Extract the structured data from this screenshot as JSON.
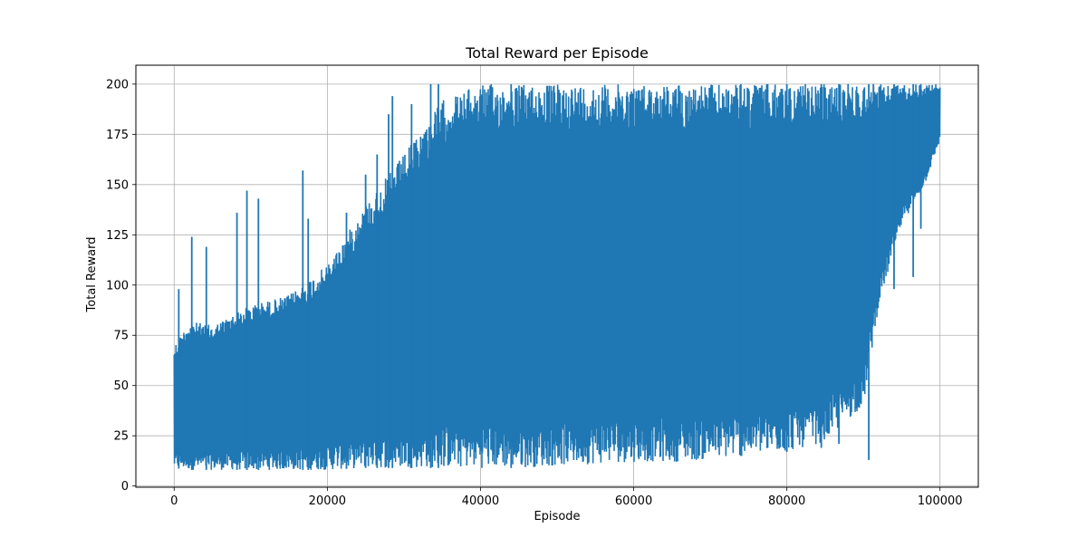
{
  "chart_data": {
    "type": "line",
    "title": "Total Reward per Episode",
    "xlabel": "Episode",
    "ylabel": "Total Reward",
    "xlim": [
      -5000,
      105000
    ],
    "ylim": [
      -0.6,
      209.4
    ],
    "xticks": [
      0,
      20000,
      40000,
      60000,
      80000,
      100000
    ],
    "yticks": [
      0,
      25,
      50,
      75,
      100,
      125,
      150,
      175,
      200
    ],
    "grid": true,
    "legend": "none",
    "series": [
      {
        "color": "#1f77b4",
        "envelope": {
          "x": [
            0,
            2000,
            5000,
            10000,
            15000,
            20000,
            25000,
            30000,
            35000,
            40000,
            45000,
            50000,
            55000,
            60000,
            65000,
            70000,
            75000,
            80000,
            85000,
            90000,
            92000,
            95000,
            98000,
            100000
          ],
          "upper": [
            70,
            82,
            80,
            90,
            95,
            110,
            140,
            165,
            192,
            200,
            200,
            200,
            200,
            200,
            200,
            200,
            200,
            200,
            200,
            200,
            200,
            200,
            200,
            200
          ],
          "lower": [
            9,
            8,
            8,
            8,
            8,
            8,
            9,
            9,
            9,
            9,
            9,
            10,
            11,
            12,
            12,
            13,
            15,
            17,
            22,
            40,
            90,
            130,
            150,
            172
          ]
        },
        "spikes": [
          {
            "x": 600,
            "y": 98
          },
          {
            "x": 2300,
            "y": 124
          },
          {
            "x": 4200,
            "y": 119
          },
          {
            "x": 8200,
            "y": 136
          },
          {
            "x": 9500,
            "y": 147
          },
          {
            "x": 11000,
            "y": 143
          },
          {
            "x": 16800,
            "y": 157
          },
          {
            "x": 17500,
            "y": 133
          },
          {
            "x": 22500,
            "y": 136
          },
          {
            "x": 25000,
            "y": 155
          },
          {
            "x": 26500,
            "y": 165
          },
          {
            "x": 28000,
            "y": 185
          },
          {
            "x": 28500,
            "y": 194
          },
          {
            "x": 31000,
            "y": 190
          },
          {
            "x": 33500,
            "y": 200
          },
          {
            "x": 34500,
            "y": 200
          },
          {
            "x": 44000,
            "y": 200
          }
        ],
        "dips": [
          {
            "x": 74000,
            "y": 15
          },
          {
            "x": 77500,
            "y": 19
          },
          {
            "x": 80000,
            "y": 17
          },
          {
            "x": 84500,
            "y": 19
          },
          {
            "x": 86800,
            "y": 21
          },
          {
            "x": 88000,
            "y": 82
          },
          {
            "x": 90700,
            "y": 13
          },
          {
            "x": 91300,
            "y": 89
          },
          {
            "x": 94000,
            "y": 98
          },
          {
            "x": 96500,
            "y": 104
          },
          {
            "x": 97500,
            "y": 128
          }
        ]
      }
    ]
  }
}
